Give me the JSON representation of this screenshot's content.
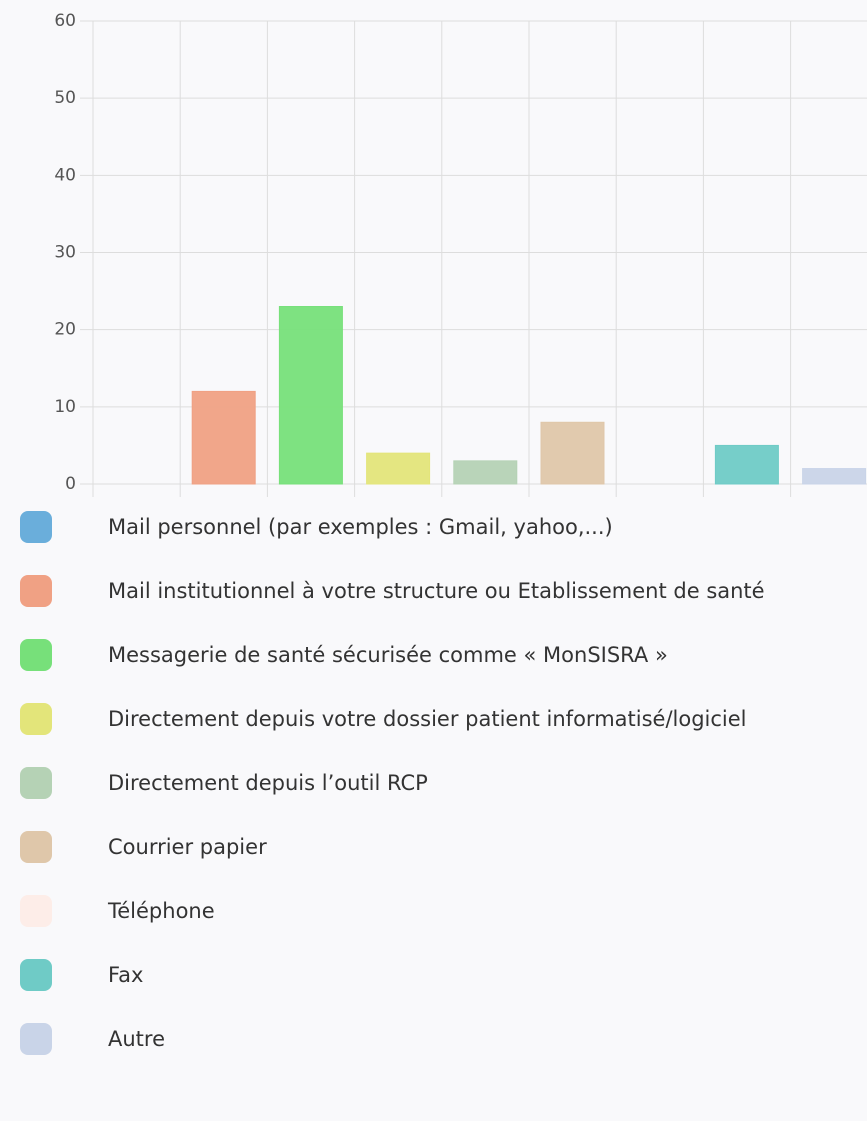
{
  "chart_data": {
    "type": "bar",
    "categories": [
      "Mail personnel (par exemples : Gmail, yahoo,...)",
      "Mail institutionnel à votre structure ou Etablissement de santé",
      "Messagerie de santé sécurisée comme « MonSISRA »",
      "Directement depuis votre dossier patient informatisé/logiciel",
      "Directement depuis l’outil RCP",
      "Courrier papier",
      "Téléphone",
      "Fax",
      "Autre"
    ],
    "values": [
      0,
      12,
      23,
      4,
      3,
      8,
      0,
      5,
      2
    ],
    "colors": [
      "#6aaedb",
      "#f0a184",
      "#77e07a",
      "#e3e57a",
      "#b5d2b5",
      "#dfc7aa",
      "#fdede8",
      "#6fcbc6",
      "#c9d4e8"
    ],
    "ylim": [
      0,
      60
    ],
    "yticks": [
      0,
      10,
      20,
      30,
      40,
      50,
      60
    ],
    "grid": true
  }
}
